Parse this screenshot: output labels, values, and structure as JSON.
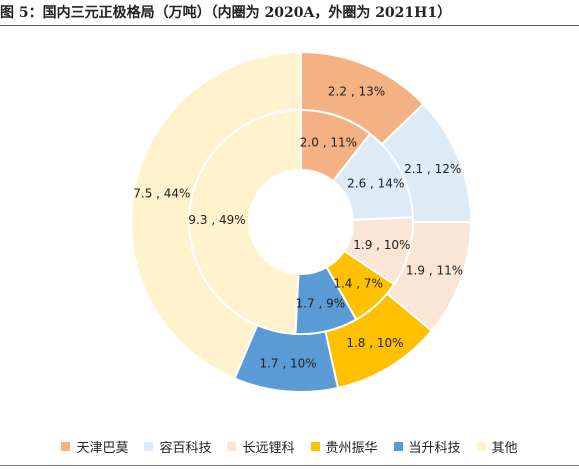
{
  "page": {
    "title": "图 5：国内三元正极格局（万吨）（内圈为 2020A，外圈为 2021H1）"
  },
  "chart_data": {
    "type": "pie",
    "subtype": "concentric-donut",
    "categories": [
      "天津巴莫",
      "容百科技",
      "长远锂科",
      "贵州振华",
      "当升科技",
      "其他"
    ],
    "colors": [
      "#F4B183",
      "#DDEBF7",
      "#FBE5D6",
      "#FFC000",
      "#5B9BD5",
      "#FFF2CC"
    ],
    "series": [
      {
        "ring": "inner",
        "values": [
          2.0,
          2.6,
          1.9,
          1.4,
          1.7,
          9.3
        ],
        "labels": [
          "2.0 , 11%",
          "2.6 , 14%",
          "1.9 , 10%",
          "1.4 , 7%",
          "1.7 , 9%",
          "9.3 , 49%"
        ]
      },
      {
        "ring": "outer",
        "values": [
          2.2,
          2.1,
          1.9,
          1.8,
          1.7,
          7.5
        ],
        "labels": [
          "2.2 , 13%",
          "2.1 , 12%",
          "1.9 , 11%",
          "1.8 , 10%",
          "1.7 , 10%",
          "7.5 , 44%"
        ]
      }
    ],
    "legend_position": "bottom"
  }
}
